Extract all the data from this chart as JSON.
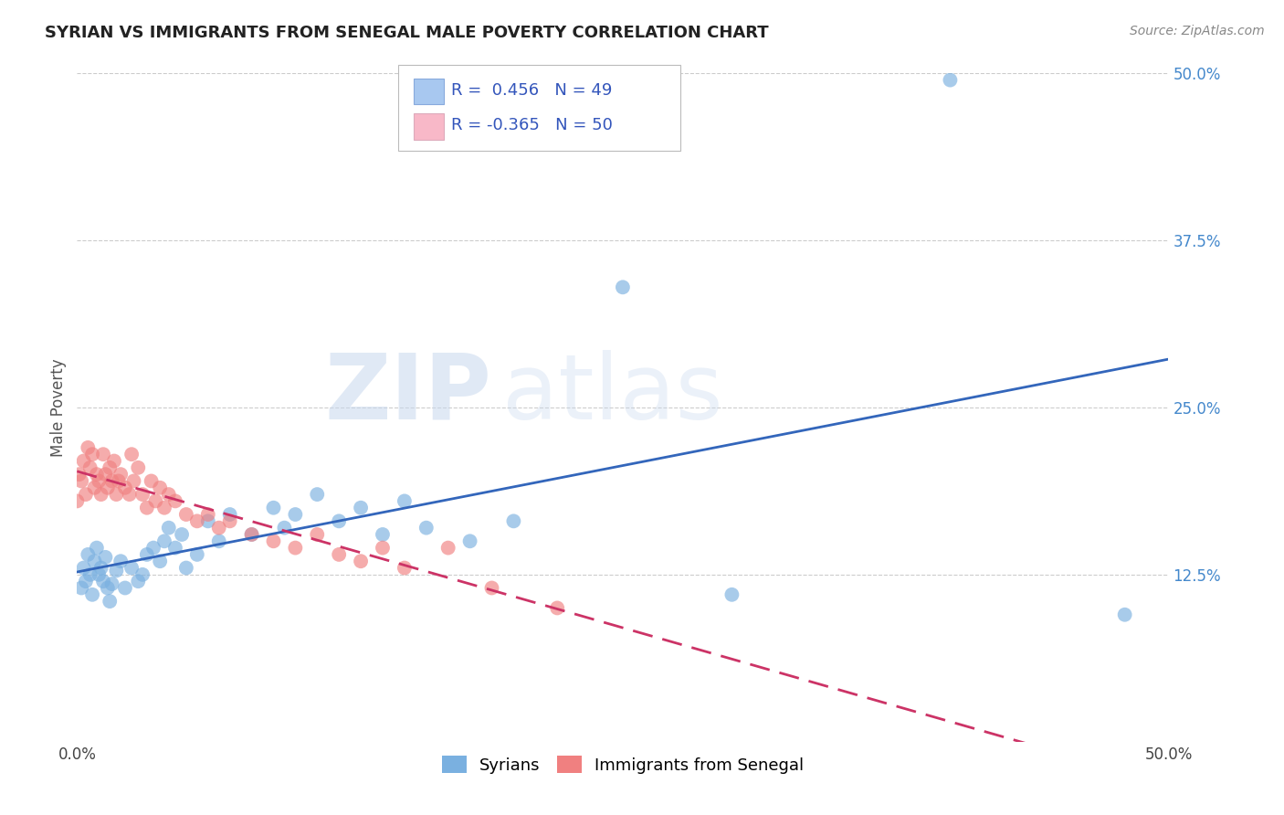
{
  "title": "SYRIAN VS IMMIGRANTS FROM SENEGAL MALE POVERTY CORRELATION CHART",
  "source": "Source: ZipAtlas.com",
  "ylabel_label": "Male Poverty",
  "watermark_zip": "ZIP",
  "watermark_atlas": "atlas",
  "syrians_color": "#7ab0e0",
  "senegal_color": "#f08080",
  "trend_syrian_color": "#3366bb",
  "trend_senegal_color": "#cc3366",
  "syrians_x": [
    0.002,
    0.003,
    0.004,
    0.005,
    0.006,
    0.007,
    0.008,
    0.009,
    0.01,
    0.011,
    0.012,
    0.013,
    0.014,
    0.015,
    0.016,
    0.018,
    0.02,
    0.022,
    0.025,
    0.028,
    0.03,
    0.032,
    0.035,
    0.038,
    0.04,
    0.042,
    0.045,
    0.048,
    0.05,
    0.055,
    0.06,
    0.065,
    0.07,
    0.08,
    0.09,
    0.095,
    0.1,
    0.11,
    0.12,
    0.13,
    0.14,
    0.15,
    0.16,
    0.18,
    0.2,
    0.25,
    0.3,
    0.4,
    0.48
  ],
  "syrians_y": [
    0.115,
    0.13,
    0.12,
    0.14,
    0.125,
    0.11,
    0.135,
    0.145,
    0.125,
    0.13,
    0.12,
    0.138,
    0.115,
    0.105,
    0.118,
    0.128,
    0.135,
    0.115,
    0.13,
    0.12,
    0.125,
    0.14,
    0.145,
    0.135,
    0.15,
    0.16,
    0.145,
    0.155,
    0.13,
    0.14,
    0.165,
    0.15,
    0.17,
    0.155,
    0.175,
    0.16,
    0.17,
    0.185,
    0.165,
    0.175,
    0.155,
    0.18,
    0.16,
    0.15,
    0.165,
    0.34,
    0.11,
    0.495,
    0.095
  ],
  "senegal_x": [
    0.0,
    0.001,
    0.002,
    0.003,
    0.004,
    0.005,
    0.006,
    0.007,
    0.008,
    0.009,
    0.01,
    0.011,
    0.012,
    0.013,
    0.014,
    0.015,
    0.016,
    0.017,
    0.018,
    0.019,
    0.02,
    0.022,
    0.024,
    0.025,
    0.026,
    0.028,
    0.03,
    0.032,
    0.034,
    0.036,
    0.038,
    0.04,
    0.042,
    0.045,
    0.05,
    0.055,
    0.06,
    0.065,
    0.07,
    0.08,
    0.09,
    0.1,
    0.11,
    0.12,
    0.13,
    0.14,
    0.15,
    0.17,
    0.19,
    0.22
  ],
  "senegal_y": [
    0.18,
    0.2,
    0.195,
    0.21,
    0.185,
    0.22,
    0.205,
    0.215,
    0.19,
    0.2,
    0.195,
    0.185,
    0.215,
    0.2,
    0.19,
    0.205,
    0.195,
    0.21,
    0.185,
    0.195,
    0.2,
    0.19,
    0.185,
    0.215,
    0.195,
    0.205,
    0.185,
    0.175,
    0.195,
    0.18,
    0.19,
    0.175,
    0.185,
    0.18,
    0.17,
    0.165,
    0.17,
    0.16,
    0.165,
    0.155,
    0.15,
    0.145,
    0.155,
    0.14,
    0.135,
    0.145,
    0.13,
    0.145,
    0.115,
    0.1
  ],
  "xlim": [
    0.0,
    0.5
  ],
  "ylim": [
    0.0,
    0.5
  ],
  "xticks": [
    0.0,
    0.5
  ],
  "xticklabels": [
    "0.0%",
    "50.0%"
  ],
  "yticks": [
    0.125,
    0.25,
    0.375,
    0.5
  ],
  "yticklabels": [
    "12.5%",
    "25.0%",
    "37.5%",
    "50.0%"
  ],
  "background_color": "#ffffff",
  "grid_color": "#cccccc",
  "legend_text_color": "#3355bb",
  "legend_line1": "R =  0.456   N = 49",
  "legend_line2": "R = -0.365   N = 50",
  "legend_box_color": "#a8c8f0",
  "legend_box_color2": "#f8b8c8",
  "bottom_legend": [
    "Syrians",
    "Immigrants from Senegal"
  ],
  "title_fontsize": 13,
  "tick_fontsize": 12,
  "legend_fontsize": 13
}
